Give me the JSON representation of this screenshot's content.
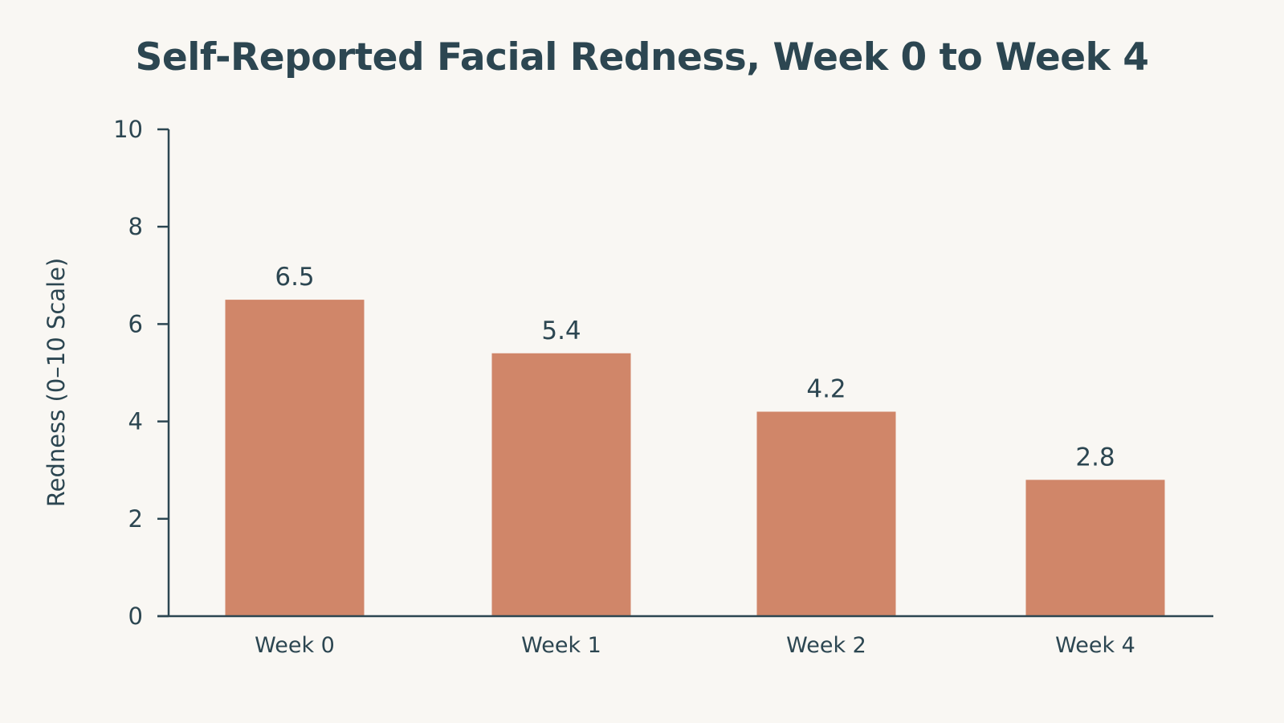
{
  "chart_data": {
    "type": "bar",
    "title": "Self-Reported Facial Redness, Week 0 to Week 4",
    "xlabel": "",
    "ylabel": "Redness (0–10 Scale)",
    "categories": [
      "Week 0",
      "Week 1",
      "Week 2",
      "Week 4"
    ],
    "values": [
      6.5,
      5.4,
      4.2,
      2.8
    ],
    "value_labels": [
      "6.5",
      "5.4",
      "4.2",
      "2.8"
    ],
    "ylim": [
      0,
      10
    ],
    "yticks": [
      0,
      2,
      4,
      6,
      8,
      10
    ],
    "grid": false,
    "legend": "none",
    "colors": {
      "bar": "#d08669",
      "axis": "#2c4651",
      "text": "#2c4651",
      "background": "#f9f7f3"
    }
  }
}
